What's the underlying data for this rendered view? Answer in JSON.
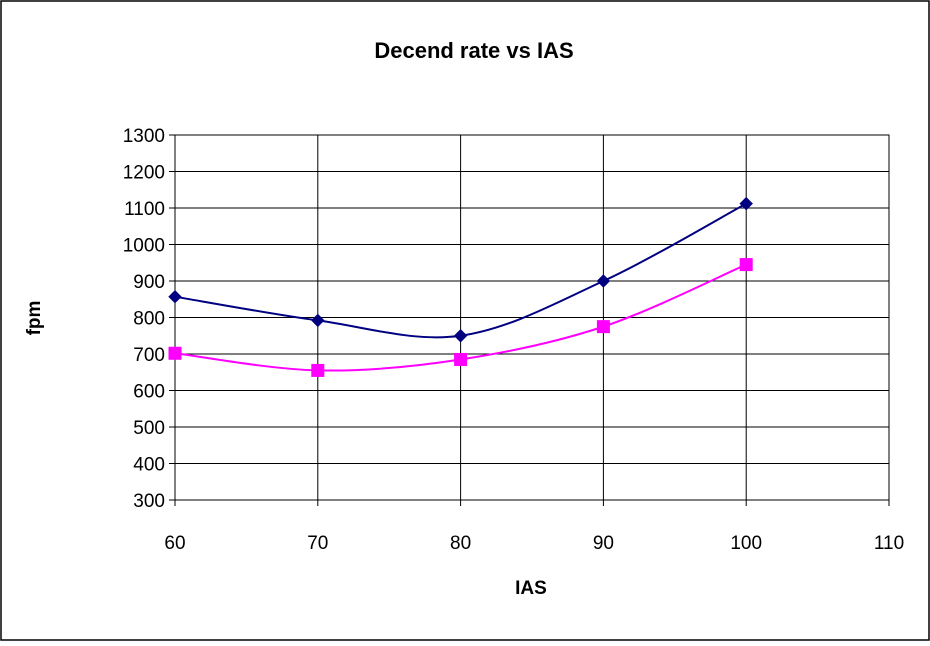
{
  "chart_data": {
    "type": "line",
    "title": "Decend rate vs IAS",
    "xlabel": "IAS",
    "ylabel": "fpm",
    "xlim": [
      60,
      110
    ],
    "ylim": [
      300,
      1300
    ],
    "xticks": [
      60,
      70,
      80,
      90,
      100,
      110
    ],
    "yticks": [
      300,
      400,
      500,
      600,
      700,
      800,
      900,
      1000,
      1100,
      1200,
      1300
    ],
    "grid": true,
    "legend": "none",
    "smoothed": true,
    "series": [
      {
        "x": [
          60,
          70,
          80,
          90,
          100
        ],
        "values": [
          857,
          792,
          750,
          900,
          1112
        ],
        "color": "#000080",
        "marker": "diamond"
      },
      {
        "x": [
          60,
          70,
          80,
          90,
          100
        ],
        "values": [
          702,
          655,
          685,
          775,
          945
        ],
        "color": "#ff00ff",
        "marker": "square"
      }
    ]
  }
}
